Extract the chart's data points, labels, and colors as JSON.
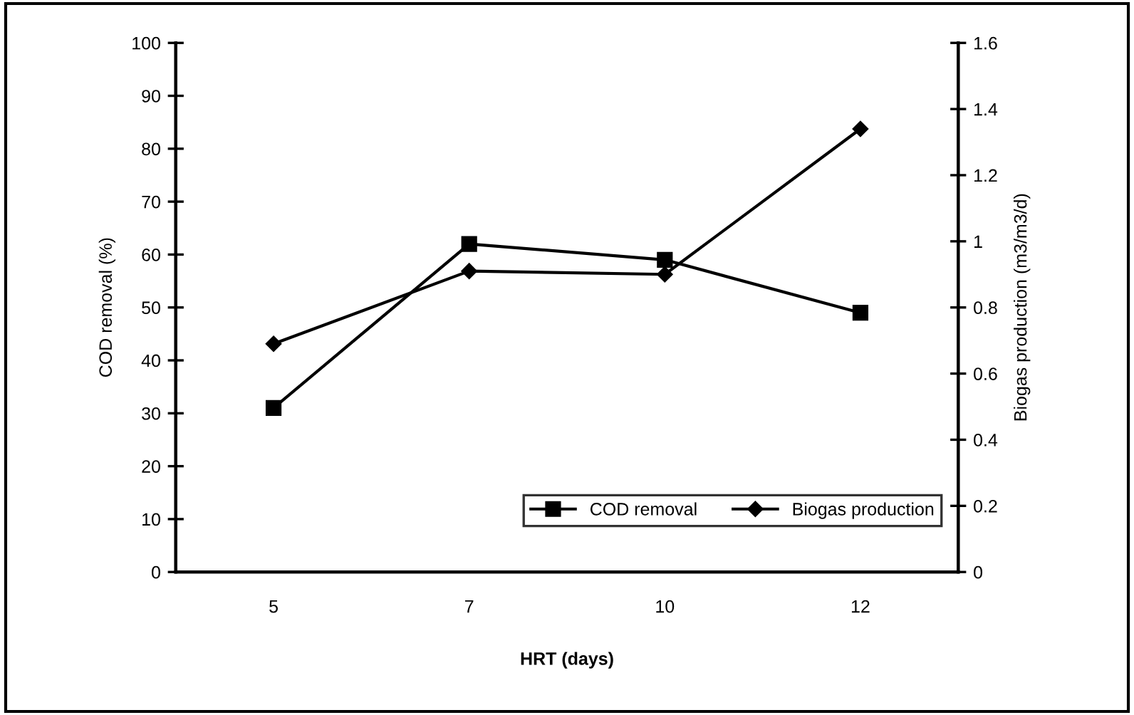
{
  "chart_data": {
    "type": "line",
    "xlabel": "HRT (days)",
    "ylabel": "COD removal (%)",
    "y2label": "Biogas production (m3/m3/d)",
    "categories": [
      "5",
      "7",
      "10",
      "12"
    ],
    "series": [
      {
        "name": "COD removal",
        "color": "#000000",
        "marker": "square",
        "values": [
          31,
          62,
          59,
          49
        ]
      },
      {
        "name": "Biogas production",
        "color": "#000000",
        "marker": "diamond",
        "axis": "y2",
        "values": [
          0.69,
          0.91,
          0.9,
          1.34
        ]
      }
    ],
    "ylim": [
      0,
      100
    ],
    "yticks": [
      0,
      10,
      20,
      30,
      40,
      50,
      60,
      70,
      80,
      90,
      100
    ],
    "y2lim": [
      0,
      1.6
    ],
    "y2ticks": [
      0,
      0.2,
      0.4,
      0.6,
      0.8,
      {
        "value": 1,
        "label": "1"
      },
      1.2,
      1.4,
      1.6
    ],
    "grid": false,
    "legend": "bottom right",
    "line_style": "solid"
  }
}
